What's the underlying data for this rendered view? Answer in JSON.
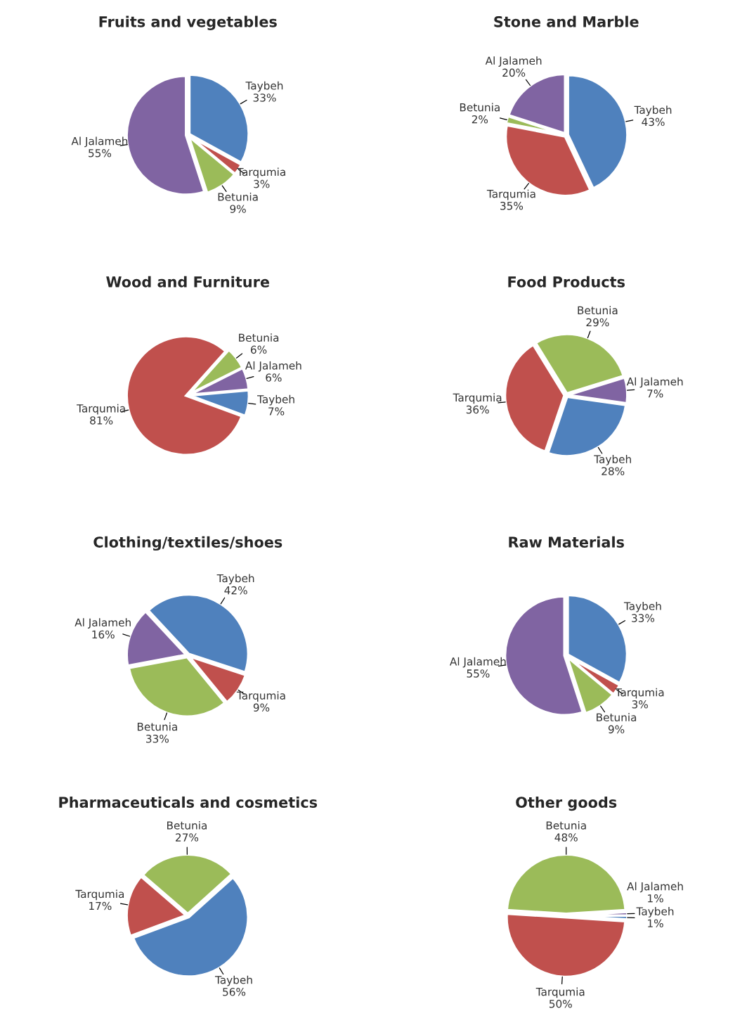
{
  "chart_data": [
    {
      "type": "pie",
      "title": "Fruits and vegetables",
      "categories": [
        "Taybeh",
        "Tarqumia",
        "Betunia",
        "Al Jalameh"
      ],
      "values": [
        33,
        3,
        9,
        55
      ],
      "value_labels": [
        "33%",
        "3%",
        "9%",
        "55%"
      ],
      "colors": [
        "#4f81bd",
        "#c0504d",
        "#9bbb59",
        "#8064a2"
      ]
    },
    {
      "type": "pie",
      "title": "Stone and Marble",
      "categories": [
        "Taybeh",
        "Tarqumia",
        "Betunia",
        "Al Jalameh"
      ],
      "values": [
        43,
        35,
        2,
        20
      ],
      "value_labels": [
        "43%",
        "35%",
        "2%",
        "20%"
      ],
      "colors": [
        "#4f81bd",
        "#c0504d",
        "#9bbb59",
        "#8064a2"
      ]
    },
    {
      "type": "pie",
      "title": "Wood and Furniture",
      "categories": [
        "Taybeh",
        "Tarqumia",
        "Betunia",
        "Al Jalameh"
      ],
      "values": [
        7,
        81,
        6,
        6
      ],
      "value_labels": [
        "7%",
        "81%",
        "6%",
        "6%"
      ],
      "colors": [
        "#4f81bd",
        "#c0504d",
        "#9bbb59",
        "#8064a2"
      ]
    },
    {
      "type": "pie",
      "title": "Food Products",
      "categories": [
        "Taybeh",
        "Tarqumia",
        "Betunia",
        "Al Jalameh"
      ],
      "values": [
        28,
        36,
        29,
        7
      ],
      "value_labels": [
        "28%",
        "36%",
        "29%",
        "7%"
      ],
      "colors": [
        "#4f81bd",
        "#c0504d",
        "#9bbb59",
        "#8064a2"
      ]
    },
    {
      "type": "pie",
      "title": "Clothing/textiles/shoes",
      "categories": [
        "Taybeh",
        "Tarqumia",
        "Betunia",
        "Al Jalameh"
      ],
      "values": [
        42,
        9,
        33,
        16
      ],
      "value_labels": [
        "42%",
        "9%",
        "33%",
        "16%"
      ],
      "colors": [
        "#4f81bd",
        "#c0504d",
        "#9bbb59",
        "#8064a2"
      ]
    },
    {
      "type": "pie",
      "title": "Raw Materials",
      "categories": [
        "Taybeh",
        "Tarqumia",
        "Betunia",
        "Al Jalameh"
      ],
      "values": [
        33,
        3,
        9,
        55
      ],
      "value_labels": [
        "33%",
        "3%",
        "9%",
        "55%"
      ],
      "colors": [
        "#4f81bd",
        "#c0504d",
        "#9bbb59",
        "#8064a2"
      ]
    },
    {
      "type": "pie",
      "title": "Pharmaceuticals and cosmetics",
      "categories": [
        "Taybeh",
        "Tarqumia",
        "Betunia"
      ],
      "values": [
        56,
        17,
        27
      ],
      "value_labels": [
        "56%",
        "17%",
        "27%"
      ],
      "colors": [
        "#4f81bd",
        "#c0504d",
        "#9bbb59"
      ]
    },
    {
      "type": "pie",
      "title": "Other goods",
      "categories": [
        "Taybeh",
        "Tarqumia",
        "Betunia",
        "Al Jalameh"
      ],
      "values": [
        1,
        50,
        48,
        1
      ],
      "value_labels": [
        "1%",
        "50%",
        "48%",
        "1%"
      ],
      "colors": [
        "#4f81bd",
        "#c0504d",
        "#9bbb59",
        "#8064a2"
      ]
    }
  ]
}
